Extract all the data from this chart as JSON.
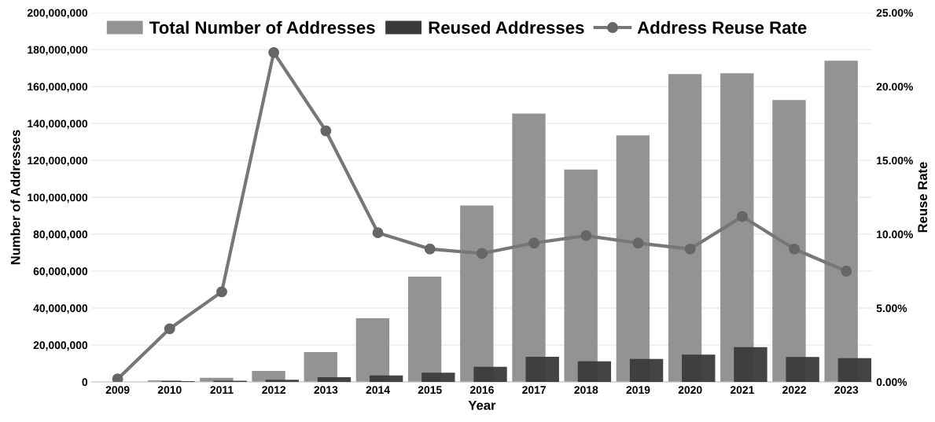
{
  "chart_data": {
    "type": "bar",
    "xlabel": "Year",
    "ylabel": "Number of Addresses",
    "y2label": "Reuse Rate",
    "categories": [
      "2009",
      "2010",
      "2011",
      "2012",
      "2013",
      "2014",
      "2015",
      "2016",
      "2017",
      "2018",
      "2019",
      "2020",
      "2021",
      "2022",
      "2023"
    ],
    "series": [
      {
        "name": "Total Number of Addresses",
        "color": "#939393",
        "values": [
          null,
          800000,
          2200000,
          6000000,
          16200000,
          34500000,
          57000000,
          95500000,
          145400000,
          115000000,
          133500000,
          166700000,
          167200000,
          152700000,
          174000000
        ]
      },
      {
        "name": "Reused Addresses",
        "color": "#3a3a3a",
        "values": [
          null,
          400000,
          600000,
          1200000,
          2600000,
          3500000,
          5000000,
          8200000,
          13600000,
          11200000,
          12400000,
          14800000,
          18800000,
          13500000,
          12900000
        ]
      },
      {
        "name": "Address Reuse Rate",
        "type": "line",
        "axis": "y2",
        "color": "#777777",
        "marker": "circle",
        "values": [
          0.2,
          3.6,
          6.1,
          22.3,
          17.0,
          10.1,
          9.0,
          8.7,
          9.4,
          9.9,
          9.4,
          9.0,
          11.2,
          9.0,
          7.5
        ]
      }
    ],
    "ylim": [
      0,
      200000000
    ],
    "yticks": [
      {
        "value": 0,
        "label": "0"
      },
      {
        "value": 20000000,
        "label": "20,000,000"
      },
      {
        "value": 40000000,
        "label": "40,000,000"
      },
      {
        "value": 60000000,
        "label": "60,000,000"
      },
      {
        "value": 80000000,
        "label": "80,000,000"
      },
      {
        "value": 100000000,
        "label": "100,000,000"
      },
      {
        "value": 120000000,
        "label": "120,000,000"
      },
      {
        "value": 140000000,
        "label": "140,000,000"
      },
      {
        "value": 160000000,
        "label": "160,000,000"
      },
      {
        "value": 180000000,
        "label": "180,000,000"
      },
      {
        "value": 200000000,
        "label": "200,000,000"
      }
    ],
    "y2lim": [
      0,
      25
    ],
    "y2ticks": [
      {
        "value": 0,
        "label": "0.00%"
      },
      {
        "value": 5,
        "label": "5.00%"
      },
      {
        "value": 10,
        "label": "10.00%"
      },
      {
        "value": 15,
        "label": "15.00%"
      },
      {
        "value": 20,
        "label": "20.00%"
      },
      {
        "value": 25,
        "label": "25.00%"
      }
    ],
    "grid": "y",
    "legend": "top left"
  }
}
